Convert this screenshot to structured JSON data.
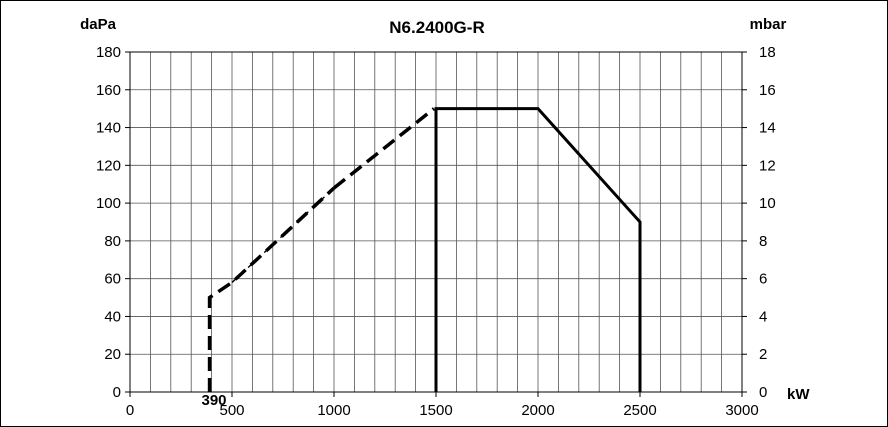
{
  "chart_data": {
    "type": "line",
    "title": "N6.2400G-R",
    "ylabel_left": "daPa",
    "ylabel_right": "mbar",
    "xlabel": "kW",
    "xlim": [
      0,
      3000
    ],
    "ylim_left": [
      0,
      180
    ],
    "ylim_right": [
      0,
      18
    ],
    "x_ticks": [
      "0",
      "500",
      "1000",
      "1500",
      "2000",
      "2500",
      "3000"
    ],
    "y_ticks_left": [
      "0",
      "20",
      "40",
      "60",
      "80",
      "100",
      "120",
      "140",
      "160",
      "180"
    ],
    "y_ticks_right": [
      "0",
      "2",
      "4",
      "6",
      "8",
      "10",
      "12",
      "14",
      "16",
      "18"
    ],
    "grid": true,
    "annotation": "390",
    "series": [
      {
        "style": "dashed-bold",
        "x": [
          390,
          390,
          500,
          1000
        ],
        "y": [
          0,
          50,
          58,
          108
        ]
      },
      {
        "style": "dashed-thin",
        "x": [
          500,
          1000
        ],
        "y": [
          58,
          108
        ]
      },
      {
        "style": "dashed-bold",
        "x": [
          1000,
          1490
        ],
        "y": [
          108,
          150
        ]
      },
      {
        "style": "solid",
        "x": [
          1500,
          1500,
          2000,
          2500,
          2500
        ],
        "y": [
          0,
          150,
          150,
          90,
          0
        ]
      }
    ]
  }
}
